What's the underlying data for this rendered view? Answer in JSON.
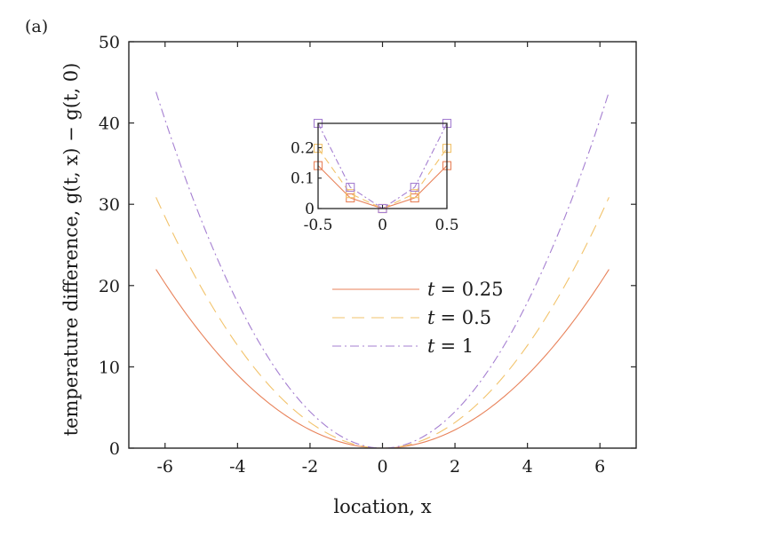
{
  "panel_label": "(a)",
  "chart_data": [
    {
      "type": "line",
      "xlabel": "location, x",
      "ylabel": "temperature difference, g(t, x) − g(t, 0)",
      "xlim": [
        -7,
        7
      ],
      "ylim": [
        0,
        50
      ],
      "xticks": [
        -6,
        -4,
        -2,
        0,
        2,
        4,
        6
      ],
      "xtick_labels": [
        "-6",
        "-4",
        "-2",
        "0",
        "2",
        "4",
        "6"
      ],
      "yticks": [
        0,
        10,
        20,
        30,
        40,
        50
      ],
      "ytick_labels": [
        "0",
        "10",
        "20",
        "30",
        "40",
        "50"
      ],
      "grid": false,
      "legend_position": "center-right",
      "x_range": [
        -6.25,
        6.25
      ],
      "series": [
        {
          "name": "t = 0.25",
          "label_var": "t",
          "label_val": "= 0.25",
          "color": "#e8825a",
          "dash": "",
          "coef": 0.563
        },
        {
          "name": "t = 0.5",
          "label_var": "t",
          "label_val": "= 0.5",
          "color": "#f2c36b",
          "dash": "14 8",
          "coef": 0.79
        },
        {
          "name": "t = 1",
          "label_var": "t",
          "label_val": "= 1",
          "color": "#a57fd1",
          "dash": "10 4 2 4",
          "coef": 1.122
        }
      ],
      "notes": "curves follow y = coef * x^2 (approx), reaching ~22, ~31, ~44 at x = ±6.25"
    },
    {
      "type": "line",
      "inset": true,
      "xlim": [
        -0.5,
        0.5
      ],
      "ylim": [
        0,
        0.28
      ],
      "xticks": [
        -0.5,
        0,
        0.5
      ],
      "xtick_labels": [
        "-0.5",
        "0",
        "0.5"
      ],
      "yticks": [
        0,
        0.1,
        0.2
      ],
      "ytick_labels": [
        "0",
        "0.1",
        "0.2"
      ],
      "x": [
        -0.5,
        -0.25,
        0,
        0.25,
        0.5
      ],
      "series": [
        {
          "name": "t = 0.25",
          "color": "#e8825a",
          "dash": "",
          "values": [
            0.141,
            0.035,
            0,
            0.035,
            0.141
          ]
        },
        {
          "name": "t = 0.5",
          "color": "#f2c36b",
          "dash": "8 5",
          "values": [
            0.198,
            0.049,
            0,
            0.049,
            0.198
          ]
        },
        {
          "name": "t = 1",
          "color": "#a57fd1",
          "dash": "7 3 2 3",
          "values": [
            0.28,
            0.07,
            0,
            0.07,
            0.28
          ]
        }
      ],
      "marker": "square"
    }
  ]
}
